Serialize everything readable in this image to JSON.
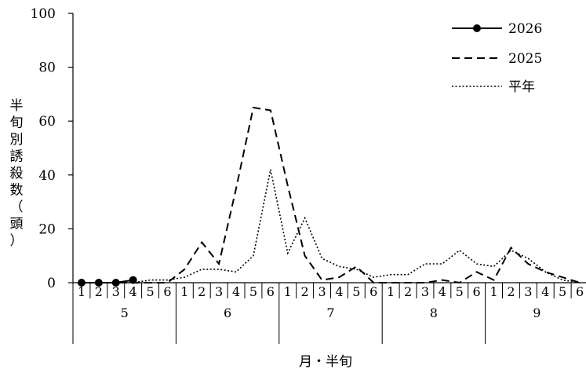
{
  "chart_data": {
    "type": "line",
    "xlabel": "月・半旬",
    "ylabel": "半旬別誘殺数（頭）",
    "ylabel_chars": [
      "半",
      "旬",
      "別",
      "誘",
      "殺",
      "数",
      "（",
      "頭",
      "）"
    ],
    "ylim": [
      0,
      100
    ],
    "yticks": [
      0,
      20,
      40,
      60,
      80,
      100
    ],
    "grid": false,
    "legend_position": "top-right",
    "months": [
      {
        "label": "5",
        "halves": [
          "1",
          "2",
          "3",
          "4",
          "5",
          "6"
        ]
      },
      {
        "label": "6",
        "halves": [
          "1",
          "2",
          "3",
          "4",
          "5",
          "6"
        ]
      },
      {
        "label": "7",
        "halves": [
          "1",
          "2",
          "3",
          "4",
          "5",
          "6"
        ]
      },
      {
        "label": "8",
        "halves": [
          "1",
          "2",
          "3",
          "4",
          "5",
          "6"
        ]
      },
      {
        "label": "9",
        "halves": [
          "1",
          "2",
          "3",
          "4",
          "5",
          "6"
        ]
      }
    ],
    "series": [
      {
        "name": "2026",
        "style": "solid-marker",
        "color": "#000000",
        "values": [
          0,
          0,
          0,
          1
        ]
      },
      {
        "name": "2025",
        "style": "dashed",
        "color": "#000000",
        "values": [
          0,
          0,
          0,
          0,
          0,
          0,
          5,
          15,
          7,
          35,
          65,
          64,
          36,
          10,
          1,
          2,
          6,
          0,
          0,
          0,
          0,
          1,
          0,
          4,
          1,
          13,
          7,
          4,
          2,
          0
        ]
      },
      {
        "name": "平年",
        "style": "dotted",
        "color": "#000000",
        "values": [
          0,
          0,
          0,
          0,
          1,
          1,
          2,
          5,
          5,
          4,
          10,
          42,
          11,
          24,
          9,
          6,
          5,
          2,
          3,
          3,
          7,
          7,
          12,
          7,
          6,
          12,
          9,
          4,
          1,
          0
        ]
      }
    ]
  }
}
